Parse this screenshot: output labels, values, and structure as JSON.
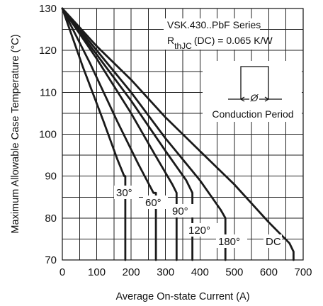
{
  "chart_data": {
    "type": "line",
    "title": "",
    "xlabel": "Average On-state Current (A)",
    "ylabel": "Maximum Allowable Case Temperature (°C)",
    "xlim": [
      0,
      700
    ],
    "ylim": [
      70,
      130
    ],
    "x_ticks": [
      "0",
      "100",
      "200",
      "300",
      "400",
      "500",
      "600",
      "700"
    ],
    "y_ticks": [
      "70",
      "80",
      "90",
      "100",
      "110",
      "120",
      "130"
    ],
    "grid": true,
    "annotation_series": "VSK.430..PbF Series",
    "annotation_rth_symbol": "R",
    "annotation_rth_subscript": "thJC",
    "annotation_rth_value": "(DC) = 0.065 K/W",
    "inset_label": "Conduction Period",
    "inset_symbol": "Ø",
    "series": [
      {
        "name": "30°",
        "x": [
          0,
          60,
          120,
          160,
          180,
          183,
          183
        ],
        "y": [
          130,
          116,
          103,
          94,
          90,
          90,
          70
        ]
      },
      {
        "name": "60°",
        "x": [
          0,
          80,
          160,
          220,
          265,
          272,
          272
        ],
        "y": [
          130,
          117,
          103,
          93,
          86,
          86,
          70
        ]
      },
      {
        "name": "90°",
        "x": [
          0,
          100,
          200,
          270,
          320,
          332,
          332
        ],
        "y": [
          130,
          118,
          105,
          95,
          88,
          86,
          70
        ]
      },
      {
        "name": "120°",
        "x": [
          0,
          100,
          200,
          300,
          360,
          378,
          378
        ],
        "y": [
          130,
          119,
          108,
          96,
          89,
          86,
          70
        ]
      },
      {
        "name": "180°",
        "x": [
          0,
          100,
          200,
          300,
          400,
          460,
          474,
          474
        ],
        "y": [
          130,
          120,
          110,
          99,
          89,
          82,
          80,
          70
        ]
      },
      {
        "name": "DC",
        "x": [
          0,
          100,
          200,
          300,
          400,
          500,
          600,
          660,
          672,
          672
        ],
        "y": [
          130,
          121,
          113,
          104,
          96,
          88,
          79,
          74,
          72,
          70
        ]
      }
    ]
  }
}
